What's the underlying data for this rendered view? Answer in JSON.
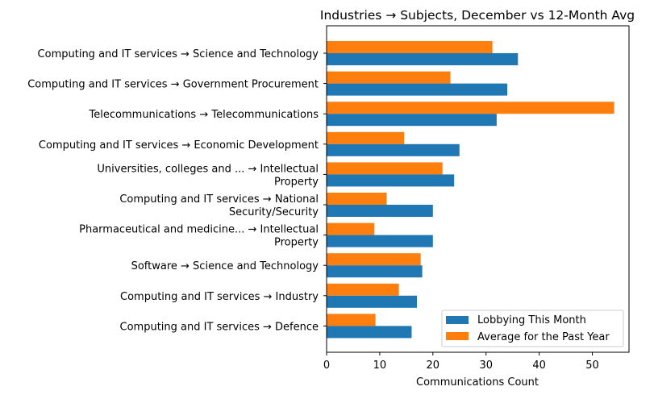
{
  "chart_data": {
    "type": "bar",
    "orientation": "horizontal",
    "title": "Industries → Subjects, December vs 12-Month Avg",
    "xlabel": "Communications Count",
    "ylabel": "",
    "xlim": [
      0,
      56.9
    ],
    "xticks": [
      0,
      10,
      20,
      30,
      40,
      50
    ],
    "grid": false,
    "legend_position": "lower-right",
    "categories": [
      [
        "Computing and IT services → Science and Technology"
      ],
      [
        "Computing and IT services → Government Procurement"
      ],
      [
        "Telecommunications → Telecommunications"
      ],
      [
        "Computing and IT services → Economic Development"
      ],
      [
        "Universities, colleges and ... → Intellectual",
        "Property"
      ],
      [
        "Computing and IT services → National",
        "Security/Security"
      ],
      [
        "Pharmaceutical and medicine... → Intellectual",
        "Property"
      ],
      [
        "Software → Science and Technology"
      ],
      [
        "Computing and IT services → Industry"
      ],
      [
        "Computing and IT services → Defence"
      ]
    ],
    "series": [
      {
        "name": "Lobbying This Month",
        "color": "#1f77b4",
        "values": [
          36,
          34,
          32,
          25,
          24,
          20,
          20,
          18,
          17,
          16
        ]
      },
      {
        "name": "Average for the Past Year",
        "color": "#ff7f0e",
        "values": [
          31.2,
          23.3,
          54.1,
          14.6,
          21.8,
          11.3,
          9.0,
          17.7,
          13.6,
          9.2
        ]
      }
    ]
  }
}
